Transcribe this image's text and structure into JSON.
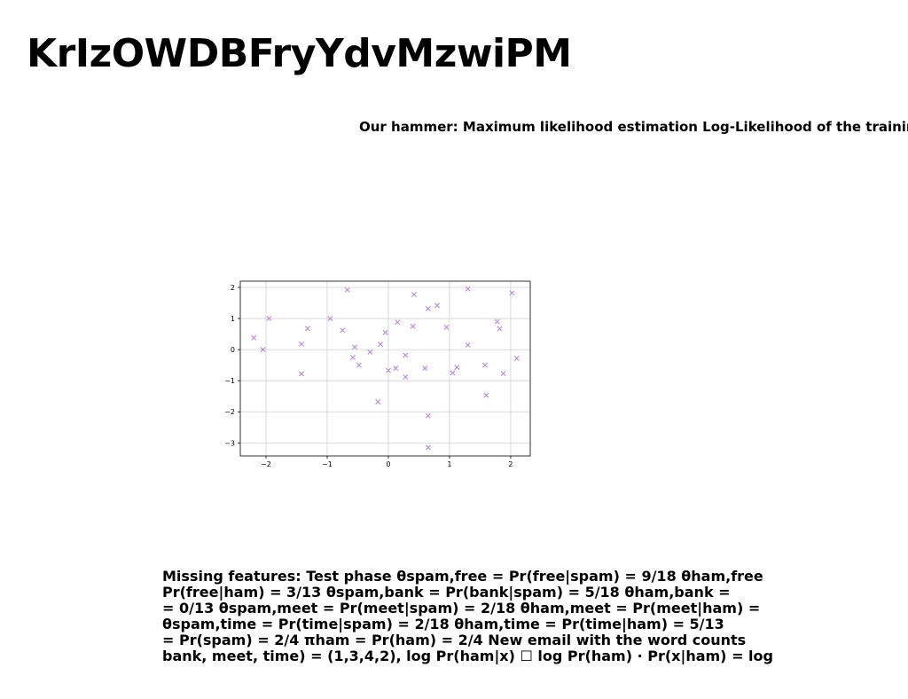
{
  "title": "KrIzOWDBFryYdvMzwiPM",
  "subtitle": "Our hammer: Maximum likelihood estimation Log-Likelihood of the training",
  "chart_data": {
    "type": "scatter",
    "xlim": [
      -2.42,
      2.32
    ],
    "ylim": [
      -3.42,
      2.2
    ],
    "xticks": [
      -2,
      -1,
      0,
      1,
      2
    ],
    "yticks": [
      -3,
      -2,
      -1,
      0,
      1,
      2
    ],
    "xtick_labels": [
      "−2",
      "−1",
      "0",
      "1",
      "2"
    ],
    "ytick_labels": [
      "−3",
      "−2",
      "−1",
      "0",
      "1",
      "2"
    ],
    "grid": true,
    "marker": "x",
    "color": "#b58ad6",
    "points": [
      [
        -2.2,
        0.38
      ],
      [
        -2.05,
        0.0
      ],
      [
        -1.95,
        1.0
      ],
      [
        -1.42,
        0.18
      ],
      [
        -1.42,
        -0.78
      ],
      [
        -1.32,
        0.68
      ],
      [
        -0.95,
        1.0
      ],
      [
        -0.75,
        0.62
      ],
      [
        -0.67,
        1.92
      ],
      [
        -0.58,
        -0.25
      ],
      [
        -0.55,
        0.08
      ],
      [
        -0.48,
        -0.5
      ],
      [
        -0.3,
        -0.08
      ],
      [
        -0.17,
        -1.68
      ],
      [
        -0.13,
        0.17
      ],
      [
        -0.05,
        0.55
      ],
      [
        0.0,
        -0.67
      ],
      [
        0.12,
        -0.6
      ],
      [
        0.15,
        0.88
      ],
      [
        0.28,
        -0.18
      ],
      [
        0.28,
        -0.88
      ],
      [
        0.4,
        0.75
      ],
      [
        0.42,
        1.77
      ],
      [
        0.6,
        -0.6
      ],
      [
        0.65,
        1.32
      ],
      [
        0.65,
        -3.15
      ],
      [
        0.65,
        -2.13
      ],
      [
        0.8,
        1.42
      ],
      [
        0.95,
        0.72
      ],
      [
        1.05,
        -0.75
      ],
      [
        1.12,
        -0.57
      ],
      [
        1.3,
        1.95
      ],
      [
        1.3,
        0.15
      ],
      [
        1.58,
        -0.5
      ],
      [
        1.6,
        -1.47
      ],
      [
        1.78,
        0.9
      ],
      [
        1.82,
        0.67
      ],
      [
        1.88,
        -0.77
      ],
      [
        2.02,
        1.82
      ],
      [
        2.1,
        -0.28
      ]
    ]
  },
  "body": {
    "lines": [
      "Missing features: Test phase θspam,free = Pr(free|spam) = 9/18 θham,free",
      "Pr(free|ham) = 3/13 θspam,bank = Pr(bank|spam) = 5/18 θham,bank =",
      "= 0/13 θspam,meet = Pr(meet|spam) = 2/18 θham,meet = Pr(meet|ham) =",
      "θspam,time = Pr(time|spam) = 2/18 θham,time = Pr(time|ham) = 5/13",
      "= Pr(spam) = 2/4 πham = Pr(ham) = 2/4 New email with the word counts",
      "bank, meet, time) = (1,3,4,2), log Pr(ham|x) ☐ log Pr(ham) · Pr(x|ham) = log"
    ]
  }
}
